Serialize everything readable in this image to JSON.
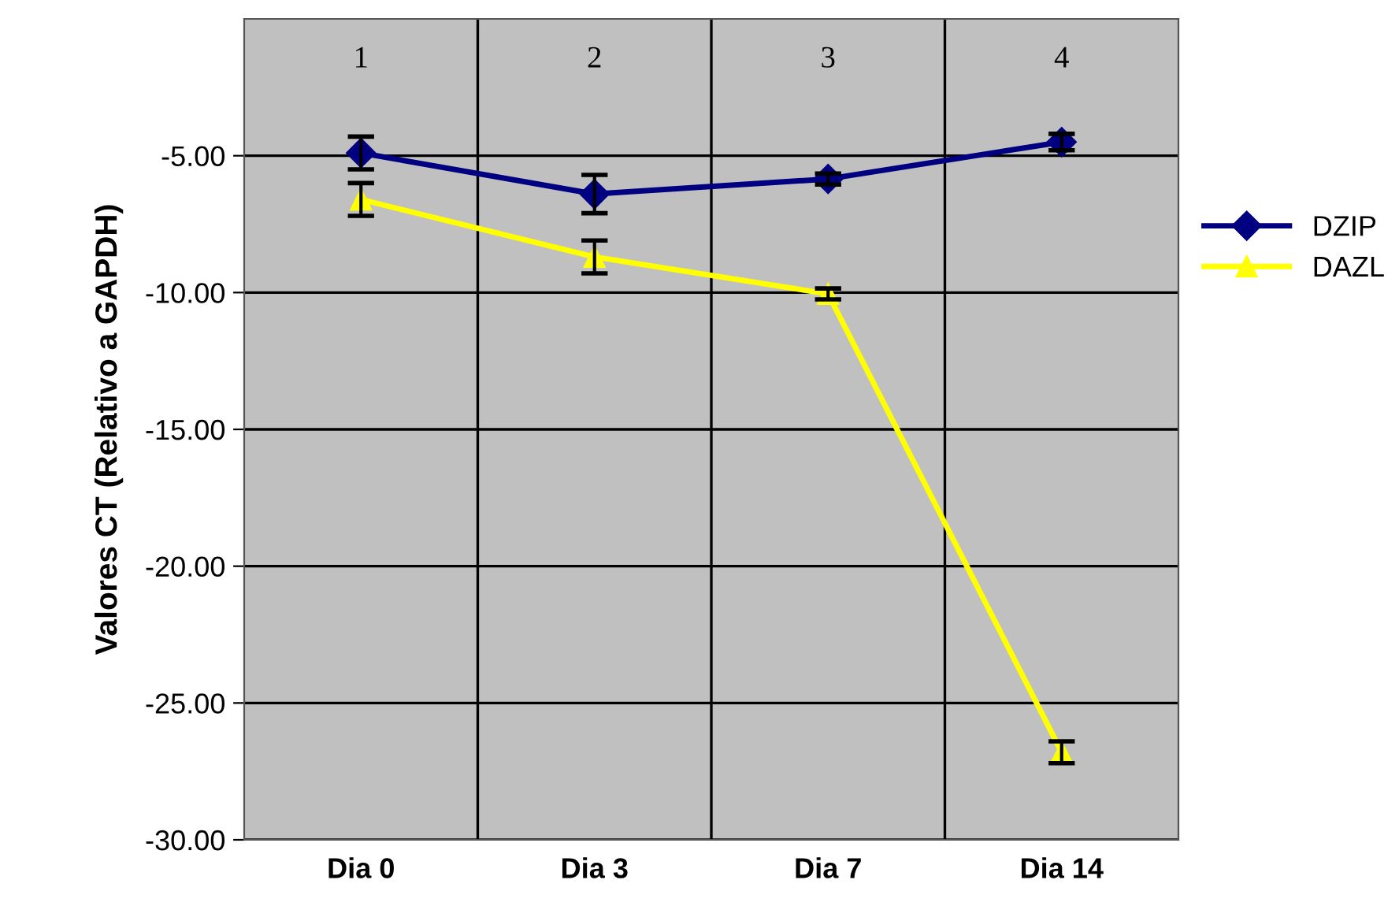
{
  "chart_data": {
    "type": "line",
    "ylabel": "Valores CT (Relativo a GAPDH)",
    "categories": [
      "Dia 0",
      "Dia 3",
      "Dia 7",
      "Dia 14"
    ],
    "series": [
      {
        "name": "DZIP",
        "color": "#000080",
        "values": [
          -4.9,
          -6.4,
          -5.85,
          -4.5
        ],
        "errors": [
          0.6,
          0.7,
          0.2,
          0.3
        ],
        "marker": "diamond"
      },
      {
        "name": "DAZL",
        "color": "#ffff00",
        "values": [
          -6.6,
          -8.7,
          -10.05,
          -26.8
        ],
        "errors": [
          0.6,
          0.6,
          0.2,
          0.4
        ],
        "marker": "triangle"
      }
    ],
    "annotations": [
      "1",
      "2",
      "3",
      "4"
    ],
    "ylim": [
      -30,
      0
    ],
    "yticks": [
      {
        "value": -30,
        "label": "-30.00"
      },
      {
        "value": -25,
        "label": "-25.00"
      },
      {
        "value": -20,
        "label": "-20.00"
      },
      {
        "value": -15,
        "label": "-15.00"
      },
      {
        "value": -10,
        "label": "-10.00"
      },
      {
        "value": -5,
        "label": "-5.00"
      }
    ],
    "grid": true,
    "legend": "right",
    "line_style": "solid"
  }
}
